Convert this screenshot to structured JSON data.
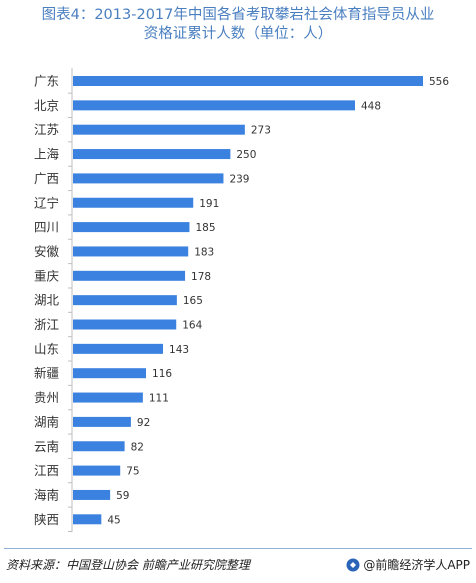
{
  "title": {
    "line1": "图表4：2013-2017年中国各省考取攀岩社会体育指导员从业",
    "line2": "资格证累计人数（单位：人）"
  },
  "chart_data": {
    "type": "bar",
    "orientation": "horizontal",
    "categories": [
      "广东",
      "北京",
      "江苏",
      "上海",
      "广西",
      "辽宁",
      "四川",
      "安徽",
      "重庆",
      "湖北",
      "浙江",
      "山东",
      "新疆",
      "贵州",
      "湖南",
      "云南",
      "江西",
      "海南",
      "陕西"
    ],
    "values": [
      556,
      448,
      273,
      250,
      239,
      191,
      185,
      183,
      178,
      165,
      164,
      143,
      116,
      111,
      92,
      82,
      75,
      59,
      45
    ],
    "xlim": [
      0,
      556
    ],
    "grid": false,
    "bar_color": "#3b82e0"
  },
  "footer": {
    "source": "资料来源：中国登山协会 前瞻产业研究院整理",
    "brand": "@前瞻经济学人APP"
  }
}
